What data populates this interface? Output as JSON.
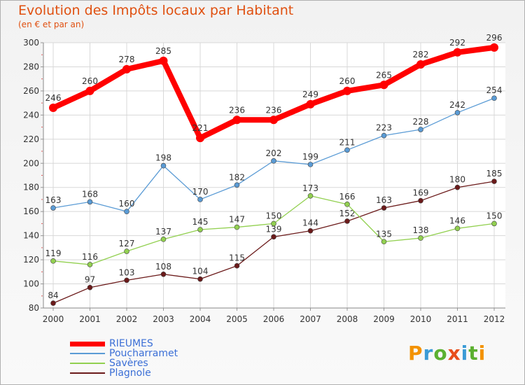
{
  "title": "Evolution des Impôts locaux par Habitant",
  "subtitle": "(en € et par an)",
  "logo": {
    "letters": [
      "P",
      "r",
      "o",
      "x",
      "i",
      "t",
      "i"
    ],
    "colors": [
      "#f39200",
      "#3b9bd6",
      "#5bb030",
      "#e84e1b",
      "#3b9bd6",
      "#5bb030",
      "#f39200"
    ]
  },
  "chart_data": {
    "type": "line",
    "x": [
      "2000",
      "2001",
      "2002",
      "2003",
      "2004",
      "2005",
      "2006",
      "2007",
      "2008",
      "2009",
      "2010",
      "2011",
      "2012"
    ],
    "ylim": [
      80,
      300
    ],
    "yticks": [
      80,
      100,
      120,
      140,
      160,
      180,
      200,
      220,
      240,
      260,
      280,
      300
    ],
    "grid": true,
    "legend_position": "bottom-left",
    "series": [
      {
        "name": "RIEUMES",
        "color": "#ff0000",
        "values": [
          246,
          260,
          278,
          285,
          221,
          236,
          236,
          249,
          260,
          265,
          282,
          292,
          296
        ]
      },
      {
        "name": "Poucharramet",
        "color": "#5a9bd5",
        "values": [
          163,
          168,
          160,
          198,
          170,
          182,
          202,
          199,
          211,
          223,
          228,
          242,
          254
        ]
      },
      {
        "name": "Savères",
        "color": "#92d050",
        "values": [
          119,
          116,
          127,
          137,
          145,
          147,
          150,
          173,
          166,
          135,
          138,
          146,
          150
        ]
      },
      {
        "name": "Plagnole",
        "color": "#6b1a1a",
        "values": [
          84,
          97,
          103,
          108,
          104,
          115,
          139,
          144,
          152,
          163,
          169,
          180,
          185
        ]
      }
    ]
  }
}
